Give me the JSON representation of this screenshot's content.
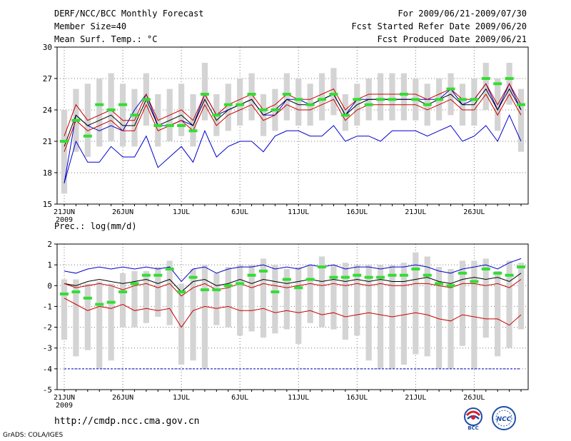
{
  "header": {
    "title": "DERF/NCC/BCC Monthly Forecast",
    "member_size": "Member Size=40",
    "variable": "Mean Surf. Temp.: °C",
    "period": "For 2009/06/21-2009/07/30",
    "started": "Fcst Started Refer Date 2009/06/20",
    "produced": "Fcst Produced Date 2009/06/21"
  },
  "footer": {
    "url": "http://cmdp.ncc.cma.gov.cn",
    "credit": "GrADS: COLA/IGES",
    "logo_left": "BCC",
    "logo_right": "NCC"
  },
  "chart_data": [
    {
      "type": "line",
      "title": "Mean Surf. Temp.: °C",
      "ylim": [
        15,
        30
      ],
      "yticks": [
        15,
        18,
        21,
        24,
        27,
        30
      ],
      "ytick_labels": [
        "15",
        "18",
        "21",
        "24",
        "27",
        "30"
      ],
      "xtick_labels": [
        "21JUN",
        "26JUN",
        "1JUL",
        "6JUL",
        "11JUL",
        "16JUL",
        "21JUL",
        "26JUL"
      ],
      "xtick_indices": [
        0,
        5,
        10,
        15,
        20,
        25,
        30,
        35
      ],
      "year_label": "2009",
      "grid": true,
      "series": [
        {
          "name": "max",
          "color": "#0000cc",
          "values": [
            17.0,
            23.5,
            22.5,
            22.0,
            22.5,
            22.0,
            24.0,
            25.5,
            22.5,
            22.5,
            23.0,
            22.5,
            25.5,
            23.5,
            24.0,
            24.5,
            25.0,
            23.5,
            23.5,
            25.0,
            25.0,
            24.5,
            25.0,
            25.5,
            23.5,
            25.0,
            25.0,
            25.0,
            25.0,
            25.0,
            25.0,
            25.0,
            25.0,
            26.0,
            24.5,
            25.0,
            26.5,
            24.0,
            26.5,
            24.0
          ]
        },
        {
          "name": "mean",
          "color": "#000000",
          "values": [
            20.5,
            23.5,
            22.5,
            23.0,
            23.5,
            22.5,
            22.5,
            25.0,
            22.5,
            23.0,
            23.5,
            22.5,
            25.0,
            23.0,
            24.0,
            24.5,
            25.0,
            23.5,
            24.0,
            25.0,
            24.5,
            24.5,
            25.0,
            25.5,
            23.5,
            24.5,
            25.0,
            25.0,
            25.0,
            25.0,
            25.0,
            24.5,
            25.0,
            25.5,
            24.5,
            24.5,
            26.0,
            24.0,
            26.0,
            24.0
          ]
        },
        {
          "name": "p90",
          "color": "#cc0000",
          "values": [
            21.5,
            24.5,
            23.0,
            23.5,
            24.0,
            23.0,
            23.0,
            25.5,
            23.0,
            23.5,
            24.0,
            23.0,
            25.5,
            23.5,
            24.5,
            25.0,
            25.5,
            24.0,
            24.5,
            25.5,
            25.0,
            25.0,
            25.5,
            26.0,
            24.0,
            25.0,
            25.5,
            25.5,
            25.5,
            25.5,
            25.5,
            25.0,
            25.5,
            26.0,
            25.0,
            25.0,
            26.5,
            24.5,
            26.5,
            24.5
          ]
        },
        {
          "name": "p10",
          "color": "#cc0000",
          "values": [
            20.0,
            23.0,
            22.0,
            22.5,
            23.0,
            22.0,
            22.0,
            24.5,
            22.0,
            22.5,
            23.0,
            22.0,
            24.5,
            22.5,
            23.5,
            24.0,
            24.5,
            23.0,
            23.5,
            24.5,
            24.0,
            24.0,
            24.5,
            25.0,
            23.0,
            24.0,
            24.5,
            24.5,
            24.5,
            24.5,
            24.5,
            24.0,
            24.5,
            25.0,
            24.0,
            24.0,
            25.5,
            23.5,
            25.5,
            23.5
          ]
        },
        {
          "name": "min",
          "color": "#0000cc",
          "values": [
            17.0,
            21.0,
            19.0,
            19.0,
            20.5,
            19.5,
            19.5,
            21.5,
            18.5,
            19.5,
            20.5,
            19.0,
            22.0,
            19.5,
            20.5,
            21.0,
            21.0,
            20.0,
            21.5,
            22.0,
            22.0,
            21.5,
            21.5,
            22.5,
            21.0,
            21.5,
            21.5,
            21.0,
            22.0,
            22.0,
            22.0,
            21.5,
            22.0,
            22.5,
            21.0,
            21.5,
            22.5,
            21.0,
            23.5,
            21.0
          ]
        },
        {
          "name": "observed",
          "color": "#33dd33",
          "values": [
            21.0,
            23.0,
            21.5,
            24.5,
            24.0,
            24.5,
            23.5,
            25.0,
            22.5,
            22.5,
            22.5,
            22.0,
            25.5,
            23.5,
            24.5,
            24.5,
            25.5,
            24.0,
            24.0,
            25.5,
            25.0,
            24.5,
            25.0,
            25.5,
            23.5,
            25.0,
            24.5,
            25.0,
            25.0,
            25.5,
            25.0,
            24.5,
            25.0,
            26.0,
            25.0,
            25.0,
            27.0,
            26.5,
            27.0,
            24.5
          ]
        }
      ],
      "spread_boxes": {
        "lower": [
          16.0,
          20.0,
          19.5,
          20.5,
          21.0,
          20.5,
          20.5,
          22.5,
          20.5,
          21.0,
          21.5,
          20.5,
          23.0,
          21.5,
          22.0,
          22.5,
          23.0,
          21.5,
          22.0,
          23.0,
          22.5,
          22.5,
          23.0,
          23.5,
          22.0,
          22.5,
          23.0,
          23.0,
          23.0,
          23.0,
          23.0,
          22.5,
          23.0,
          23.5,
          22.5,
          22.5,
          24.0,
          22.0,
          24.5,
          20.0
        ],
        "upper": [
          24.0,
          26.0,
          26.5,
          27.0,
          27.5,
          26.5,
          26.0,
          27.5,
          25.5,
          26.0,
          26.5,
          25.5,
          28.5,
          25.5,
          26.5,
          27.0,
          27.5,
          25.5,
          26.0,
          27.5,
          27.0,
          26.5,
          27.5,
          28.0,
          25.5,
          26.5,
          27.0,
          27.5,
          27.5,
          27.5,
          27.0,
          26.5,
          27.0,
          27.5,
          26.5,
          27.0,
          28.5,
          27.0,
          28.5,
          26.0
        ]
      }
    },
    {
      "type": "line",
      "title": "Prec.: log(mm/d)",
      "ylim": [
        -5,
        2
      ],
      "yticks": [
        -5,
        -4,
        -3,
        -2,
        -1,
        0,
        1,
        2
      ],
      "ytick_labels": [
        "-5",
        "-4",
        "-3",
        "-2",
        "-1",
        "0",
        "1",
        "2"
      ],
      "xtick_labels": [
        "21JUN",
        "26JUN",
        "1JUL",
        "6JUL",
        "11JUL",
        "16JUL",
        "21JUL",
        "26JUL"
      ],
      "xtick_indices": [
        0,
        5,
        10,
        15,
        20,
        25,
        30,
        35
      ],
      "year_label": "2009",
      "grid": true,
      "reference_line": -4,
      "series": [
        {
          "name": "max",
          "color": "#0000cc",
          "values": [
            0.7,
            0.6,
            0.8,
            0.9,
            0.8,
            0.9,
            0.8,
            0.9,
            0.8,
            0.9,
            0.2,
            0.8,
            0.9,
            0.6,
            0.8,
            0.9,
            0.9,
            1.0,
            0.8,
            0.9,
            0.8,
            1.0,
            0.9,
            1.0,
            0.8,
            0.9,
            0.9,
            0.8,
            0.9,
            0.9,
            1.0,
            0.9,
            0.7,
            0.6,
            0.8,
            0.9,
            1.0,
            0.8,
            1.1,
            1.3
          ]
        },
        {
          "name": "mean",
          "color": "#000000",
          "values": [
            0.1,
            0.0,
            0.2,
            0.3,
            0.2,
            0.1,
            0.2,
            0.3,
            0.1,
            0.3,
            -0.3,
            0.2,
            0.3,
            0.0,
            0.1,
            0.3,
            0.1,
            0.3,
            0.2,
            0.1,
            0.2,
            0.3,
            0.2,
            0.3,
            0.2,
            0.3,
            0.2,
            0.3,
            0.2,
            0.2,
            0.3,
            0.4,
            0.2,
            0.1,
            0.3,
            0.4,
            0.3,
            0.4,
            0.2,
            0.6
          ]
        },
        {
          "name": "p90",
          "color": "#cc0000",
          "values": [
            0.1,
            -0.1,
            0.0,
            0.1,
            0.0,
            -0.2,
            0.0,
            0.1,
            -0.1,
            0.1,
            -0.5,
            -0.1,
            0.1,
            -0.2,
            -0.1,
            0.1,
            -0.1,
            0.1,
            0.0,
            -0.1,
            0.0,
            0.1,
            0.0,
            0.1,
            0.0,
            0.1,
            0.0,
            0.1,
            0.0,
            0.0,
            0.1,
            0.1,
            0.0,
            -0.1,
            0.1,
            0.1,
            0.0,
            0.1,
            -0.1,
            0.3
          ]
        },
        {
          "name": "p10",
          "color": "#cc0000",
          "values": [
            -0.6,
            -0.9,
            -1.2,
            -1.0,
            -1.1,
            -0.9,
            -1.2,
            -1.1,
            -1.2,
            -1.1,
            -2.0,
            -1.2,
            -1.0,
            -1.1,
            -1.0,
            -1.2,
            -1.2,
            -1.1,
            -1.3,
            -1.2,
            -1.3,
            -1.2,
            -1.4,
            -1.3,
            -1.5,
            -1.4,
            -1.3,
            -1.4,
            -1.5,
            -1.4,
            -1.3,
            -1.4,
            -1.6,
            -1.7,
            -1.4,
            -1.5,
            -1.6,
            -1.6,
            -1.9,
            -1.4
          ]
        },
        {
          "name": "observed",
          "color": "#33dd33",
          "values": [
            -0.4,
            -0.3,
            -0.6,
            -0.9,
            -0.8,
            -0.3,
            0.1,
            0.5,
            0.5,
            0.8,
            -0.3,
            0.4,
            -0.2,
            -0.2,
            0.0,
            0.1,
            0.5,
            0.7,
            -0.3,
            0.3,
            -0.1,
            0.3,
            0.9,
            0.4,
            0.4,
            0.5,
            0.4,
            0.4,
            0.5,
            0.5,
            0.8,
            0.5,
            0.1,
            0.0,
            0.6,
            0.2,
            0.8,
            0.6,
            0.5,
            0.9
          ]
        }
      ],
      "spread_boxes": {
        "lower": [
          -2.6,
          -3.4,
          -3.1,
          -4.0,
          -3.6,
          -2.0,
          -2.0,
          -1.8,
          -1.5,
          -1.9,
          -3.8,
          -3.6,
          -4.0,
          -1.9,
          -2.0,
          -2.4,
          -2.2,
          -2.5,
          -2.3,
          -2.1,
          -2.8,
          -1.8,
          -2.0,
          -2.1,
          -2.6,
          -2.4,
          -3.6,
          -4.0,
          -4.0,
          -3.8,
          -3.3,
          -3.4,
          -4.0,
          -4.0,
          -2.9,
          -4.0,
          -2.5,
          -3.4,
          -3.0,
          -2.1
        ],
        "upper": [
          0.3,
          0.3,
          0.1,
          0.2,
          0.1,
          0.6,
          0.7,
          0.7,
          0.9,
          1.2,
          0.1,
          0.8,
          1.0,
          0.6,
          0.9,
          1.0,
          1.0,
          1.3,
          1.0,
          0.8,
          0.9,
          1.0,
          1.4,
          1.0,
          1.1,
          1.0,
          1.0,
          1.0,
          1.0,
          1.1,
          1.6,
          1.4,
          0.9,
          0.8,
          1.2,
          1.2,
          1.3,
          0.7,
          1.2,
          1.1
        ]
      }
    }
  ]
}
